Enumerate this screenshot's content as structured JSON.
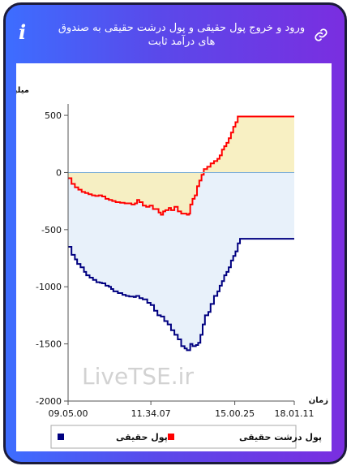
{
  "header": {
    "title": "ورود و خروج پول حقیقی و پول درشت حقیقی به صندوق های درآمد ثابت",
    "info_icon": "info-icon",
    "link_icon": "link-icon"
  },
  "colors": {
    "frame_gradient_start": "#3d6dff",
    "frame_gradient_end": "#7a2ee0",
    "series_real": "#000080",
    "series_big_real": "#ff0000",
    "fill_real": "#e8f1fa",
    "fill_big_real": "#f7eebd"
  },
  "watermark": "LiveTSE.ir",
  "chart_data": {
    "type": "line",
    "ylabel": "میلیارد تومان",
    "xlabel": "زمان",
    "ylim": [
      -2000,
      600
    ],
    "xlim": [
      0,
      100
    ],
    "y_ticks": [
      500,
      0,
      -500,
      -1000,
      -1500,
      -2000
    ],
    "x_ticks": [
      {
        "x": 0,
        "label": "09.05.00"
      },
      {
        "x": 36.6,
        "label": "11.34.07"
      },
      {
        "x": 73.7,
        "label": "15.00.25"
      },
      {
        "x": 100,
        "label": "18.01.11"
      }
    ],
    "legend_position": "bottom",
    "series": [
      {
        "name": "پول حقیقی",
        "color": "#000080",
        "points": [
          [
            0,
            -650
          ],
          [
            1.5,
            -720
          ],
          [
            3,
            -760
          ],
          [
            4,
            -800
          ],
          [
            5.5,
            -830
          ],
          [
            7,
            -870
          ],
          [
            8,
            -900
          ],
          [
            9.5,
            -920
          ],
          [
            11,
            -940
          ],
          [
            12.5,
            -960
          ],
          [
            14,
            -965
          ],
          [
            15,
            -970
          ],
          [
            16.5,
            -990
          ],
          [
            18,
            -1000
          ],
          [
            19,
            -1020
          ],
          [
            20,
            -1040
          ],
          [
            22,
            -1055
          ],
          [
            24,
            -1070
          ],
          [
            25.5,
            -1080
          ],
          [
            27,
            -1085
          ],
          [
            29,
            -1090
          ],
          [
            30,
            -1080
          ],
          [
            31.5,
            -1100
          ],
          [
            33,
            -1110
          ],
          [
            35,
            -1140
          ],
          [
            36.5,
            -1160
          ],
          [
            38,
            -1210
          ],
          [
            39.5,
            -1250
          ],
          [
            41,
            -1260
          ],
          [
            42.5,
            -1300
          ],
          [
            44,
            -1330
          ],
          [
            45.5,
            -1380
          ],
          [
            47,
            -1420
          ],
          [
            48.5,
            -1460
          ],
          [
            50,
            -1520
          ],
          [
            51.5,
            -1540
          ],
          [
            52.5,
            -1555
          ],
          [
            53.5,
            -1555
          ],
          [
            54,
            -1500
          ],
          [
            55,
            -1520
          ],
          [
            56.5,
            -1510
          ],
          [
            57.5,
            -1490
          ],
          [
            58.5,
            -1420
          ],
          [
            59.5,
            -1330
          ],
          [
            60.5,
            -1250
          ],
          [
            62,
            -1220
          ],
          [
            63,
            -1150
          ],
          [
            64.5,
            -1080
          ],
          [
            66,
            -1040
          ],
          [
            67,
            -990
          ],
          [
            68,
            -950
          ],
          [
            69,
            -900
          ],
          [
            70,
            -870
          ],
          [
            71,
            -830
          ],
          [
            72,
            -770
          ],
          [
            73,
            -730
          ],
          [
            74,
            -690
          ],
          [
            75,
            -620
          ],
          [
            76,
            -580
          ],
          [
            100,
            -580
          ]
        ]
      },
      {
        "name": "پول درشت حقیقی",
        "color": "#ff0000",
        "points": [
          [
            0,
            -50
          ],
          [
            1.5,
            -100
          ],
          [
            3,
            -130
          ],
          [
            4.5,
            -150
          ],
          [
            6,
            -170
          ],
          [
            7.5,
            -180
          ],
          [
            9,
            -190
          ],
          [
            10.5,
            -200
          ],
          [
            12,
            -205
          ],
          [
            13.5,
            -200
          ],
          [
            15,
            -210
          ],
          [
            16.5,
            -230
          ],
          [
            18,
            -240
          ],
          [
            19.5,
            -250
          ],
          [
            21,
            -260
          ],
          [
            23,
            -265
          ],
          [
            25,
            -270
          ],
          [
            26.5,
            -270
          ],
          [
            28,
            -280
          ],
          [
            29.5,
            -270
          ],
          [
            30.5,
            -240
          ],
          [
            31.5,
            -260
          ],
          [
            33,
            -290
          ],
          [
            34.5,
            -300
          ],
          [
            36,
            -290
          ],
          [
            37.5,
            -320
          ],
          [
            39,
            -320
          ],
          [
            40,
            -350
          ],
          [
            41,
            -370
          ],
          [
            42,
            -340
          ],
          [
            43,
            -330
          ],
          [
            44.5,
            -310
          ],
          [
            45.5,
            -330
          ],
          [
            47,
            -300
          ],
          [
            48.5,
            -340
          ],
          [
            50,
            -360
          ],
          [
            51.5,
            -360
          ],
          [
            52.5,
            -370
          ],
          [
            53.5,
            -360
          ],
          [
            54,
            -280
          ],
          [
            55,
            -230
          ],
          [
            56,
            -200
          ],
          [
            57,
            -120
          ],
          [
            58,
            -70
          ],
          [
            59,
            -20
          ],
          [
            60,
            30
          ],
          [
            61.5,
            50
          ],
          [
            63,
            80
          ],
          [
            64.5,
            100
          ],
          [
            66,
            120
          ],
          [
            67,
            150
          ],
          [
            68,
            200
          ],
          [
            69,
            230
          ],
          [
            70,
            260
          ],
          [
            71,
            300
          ],
          [
            72,
            350
          ],
          [
            73,
            400
          ],
          [
            74,
            440
          ],
          [
            75,
            490
          ],
          [
            100,
            490
          ]
        ]
      }
    ]
  }
}
